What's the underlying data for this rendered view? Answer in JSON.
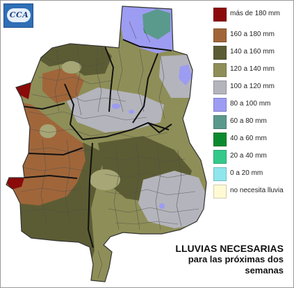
{
  "logo": {
    "text": "CCA"
  },
  "legend": [
    {
      "label": "más de 180 mm",
      "color": "#8b0a0a"
    },
    {
      "label": "160 a 180 mm",
      "color": "#a0663a"
    },
    {
      "label": "140 a 160 mm",
      "color": "#5c5c34"
    },
    {
      "label": "120 a 140 mm",
      "color": "#8e8e58"
    },
    {
      "label": "100 a 120 mm",
      "color": "#b4b4bc"
    },
    {
      "label": "80 a 100 mm",
      "color": "#9c9cf2"
    },
    {
      "label": "60 a 80 mm",
      "color": "#5a9a8c"
    },
    {
      "label": "40 a 60 mm",
      "color": "#0a8a2e"
    },
    {
      "label": "20 a 40 mm",
      "color": "#34c98a"
    },
    {
      "label": "0 a 20 mm",
      "color": "#8fe6ec"
    },
    {
      "label": "no necesita lluvia",
      "color": "#fffad4"
    }
  ],
  "title": {
    "line1": "LLUVIAS NECESARIAS",
    "line2": "para las próximas dos",
    "line3": "semanas"
  }
}
